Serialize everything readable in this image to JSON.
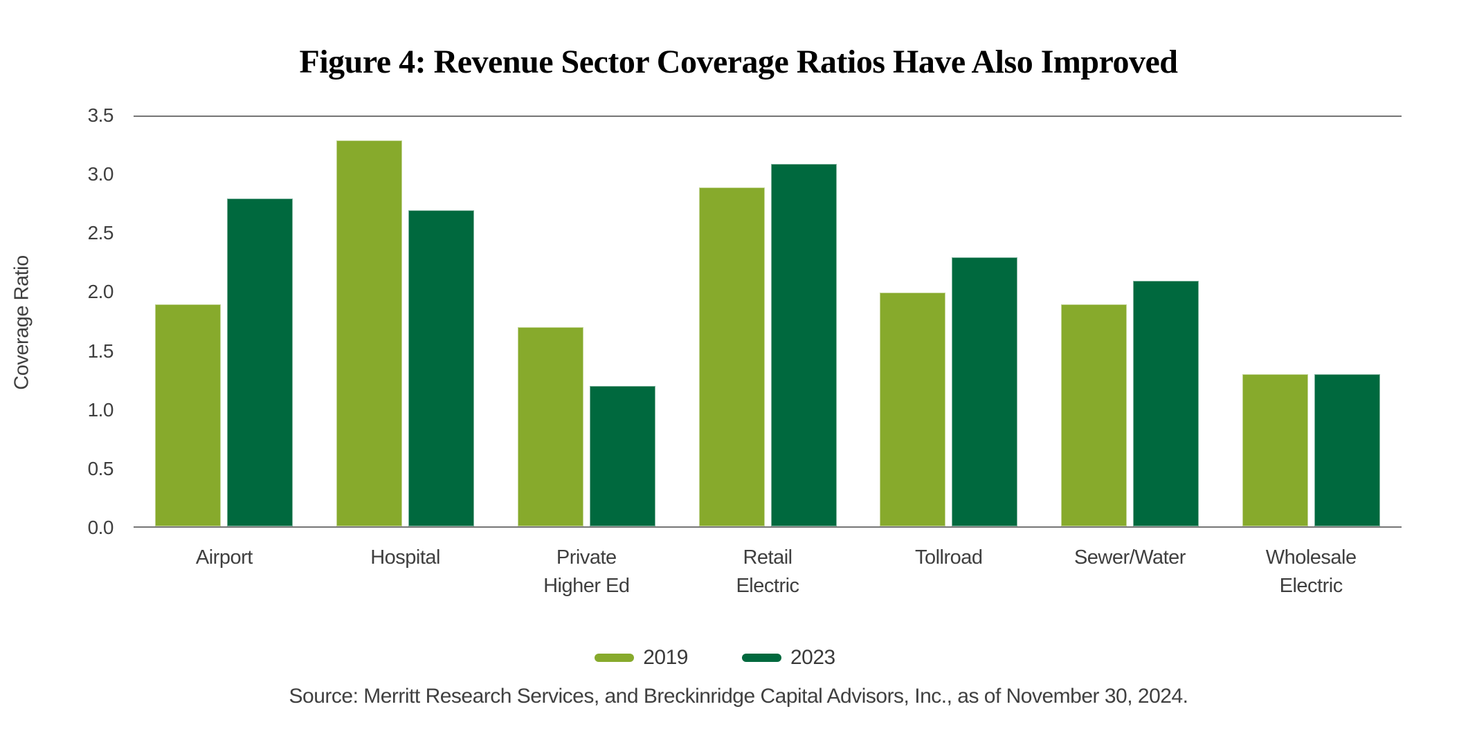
{
  "title": "Figure 4: Revenue Sector Coverage Ratios Have Also Improved",
  "chart_data": {
    "type": "bar",
    "categories": [
      "Airport",
      "Hospital",
      "Private\nHigher Ed",
      "Retail\nElectric",
      "Tollroad",
      "Sewer/Water",
      "Wholesale\nElectric"
    ],
    "series": [
      {
        "name": "2019",
        "color": "#87AA2C",
        "values": [
          1.9,
          3.3,
          1.7,
          2.9,
          2.0,
          1.9,
          1.3
        ]
      },
      {
        "name": "2023",
        "color": "#00693E",
        "values": [
          2.8,
          2.7,
          1.2,
          3.1,
          2.3,
          2.1,
          1.3
        ]
      }
    ],
    "xlabel": "",
    "ylabel": "Coverage Ratio",
    "ylim": [
      0,
      3.5
    ],
    "yticks": [
      "0.0",
      "0.5",
      "1.0",
      "1.5",
      "2.0",
      "2.5",
      "3.0",
      "3.5"
    ],
    "grid": "horizontal lines only at 0.0 baseline and 3.5 top",
    "legend_position": "bottom-center"
  },
  "source": "Source: Merritt Research Services, and Breckinridge Capital Advisors, Inc., as of November 30, 2024.",
  "colors": {
    "series_2019": "#87AA2C",
    "series_2023": "#00693E",
    "axis_line": "#757575",
    "tick_text": "#3f3f3f",
    "title_text": "#000000"
  }
}
